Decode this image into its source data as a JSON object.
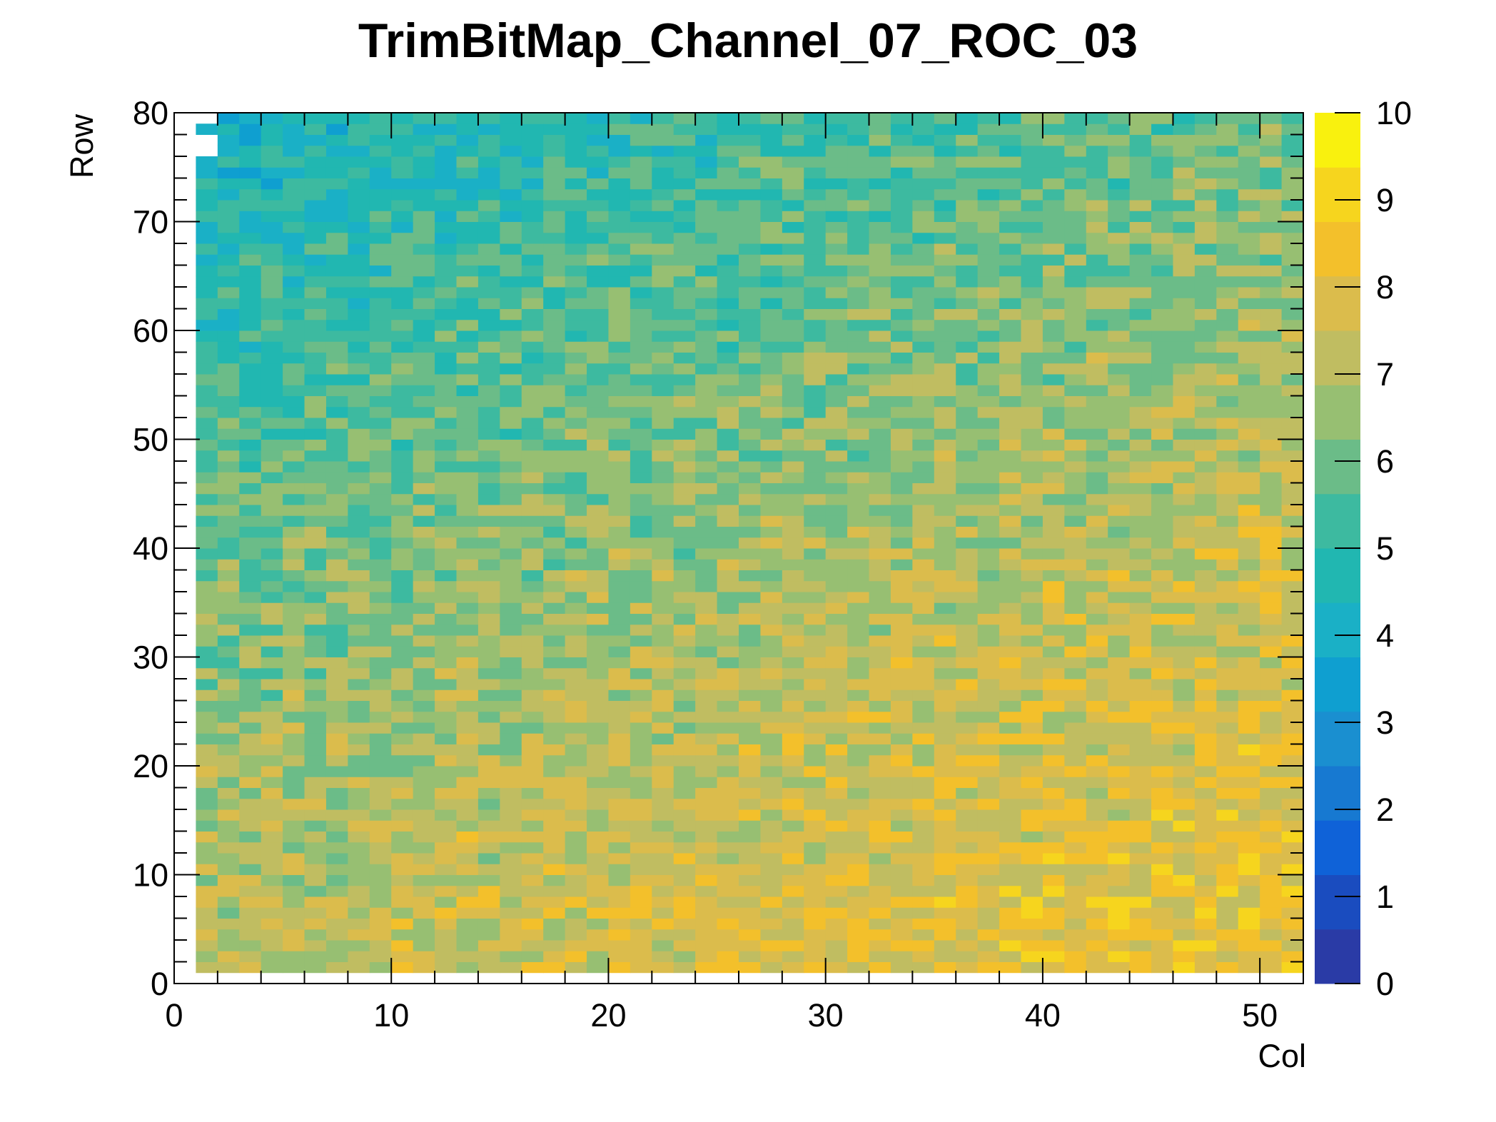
{
  "chart_data": {
    "type": "heatmap",
    "title": "TrimBitMap_Channel_07_ROC_03",
    "xlabel": "Col",
    "ylabel": "Row",
    "xlim": [
      0,
      52
    ],
    "ylim": [
      0,
      80
    ],
    "zlim": [
      0,
      10
    ],
    "x_ticks": [
      "0",
      "10",
      "20",
      "30",
      "40",
      "50"
    ],
    "y_ticks": [
      "0",
      "10",
      "20",
      "30",
      "40",
      "50",
      "60",
      "70",
      "80"
    ],
    "z_ticks": [
      "0",
      "1",
      "2",
      "3",
      "4",
      "5",
      "6",
      "7",
      "8",
      "9",
      "10"
    ],
    "x_bins": [
      1,
      52
    ],
    "y_bins": [
      1,
      79
    ],
    "grid": false,
    "palette": [
      "#2a3ba6",
      "#1a4cbf",
      "#0f62d8",
      "#1779d1",
      "#1a8fd0",
      "#0f9fd0",
      "#1ab0c6",
      "#21b7b1",
      "#3dbaa0",
      "#6bbc88",
      "#97bf72",
      "#c0bd61",
      "#dbbc4c",
      "#f3c02b",
      "#f6d51e",
      "#f9f10e"
    ],
    "value_profile": {
      "description_bottom_right": 8.3,
      "description_top_left": 4.2,
      "noise": 1.0
    }
  }
}
